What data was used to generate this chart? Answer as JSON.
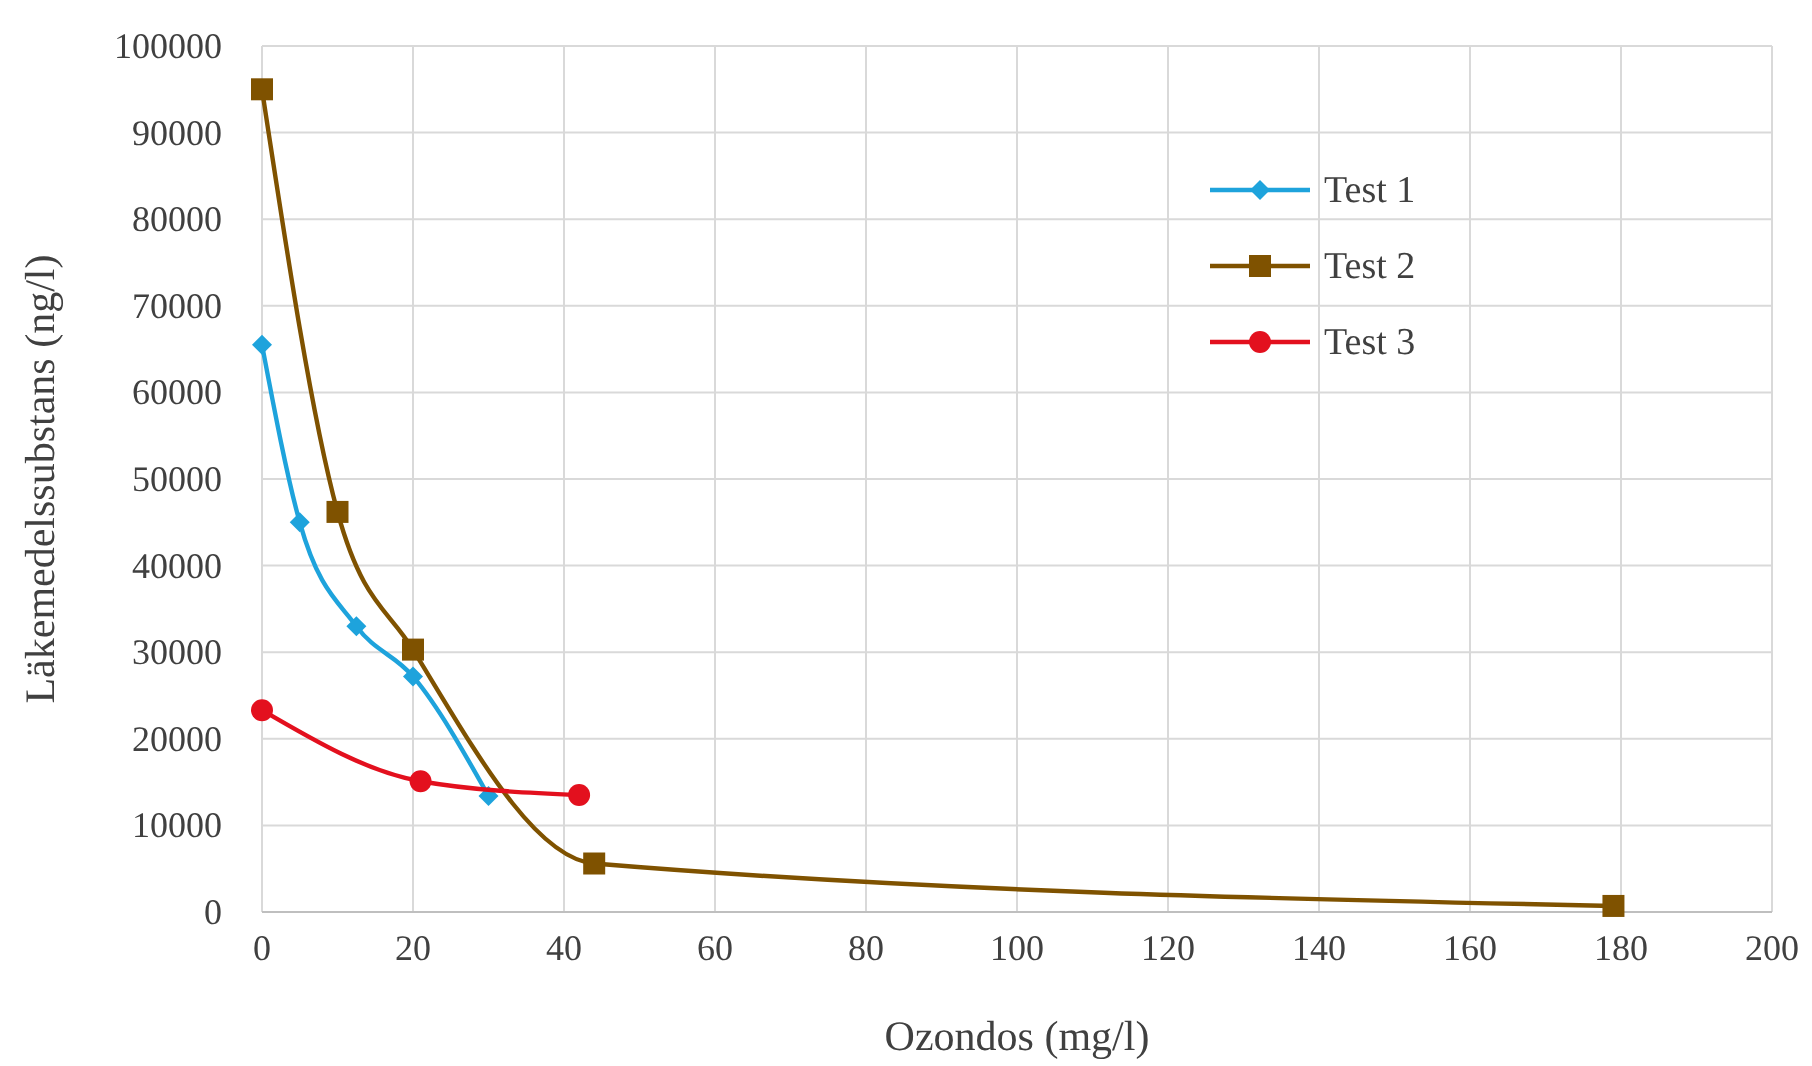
{
  "chart_data": {
    "type": "line",
    "xlabel": "Ozondos (mg/l)",
    "ylabel": "Läkemedelssubstans (ng/l)",
    "xlim": [
      0,
      200
    ],
    "xticks": [
      0,
      20,
      40,
      60,
      80,
      100,
      120,
      140,
      160,
      180,
      200
    ],
    "ylim": [
      0,
      100000
    ],
    "yticks": [
      0,
      10000,
      20000,
      30000,
      40000,
      50000,
      60000,
      70000,
      80000,
      90000,
      100000
    ],
    "grid": true,
    "legend": "top right",
    "series": [
      {
        "name": "Test 1",
        "color": "#1ea3dc",
        "marker": "diamond",
        "x": [
          0,
          5,
          12.5,
          20,
          30
        ],
        "values": [
          65500,
          45000,
          33000,
          27200,
          13400
        ]
      },
      {
        "name": "Test 2",
        "color": "#7f5200",
        "marker": "square",
        "x": [
          0,
          10,
          20,
          44,
          179
        ],
        "values": [
          95000,
          46200,
          30300,
          5600,
          700
        ]
      },
      {
        "name": "Test 3",
        "color": "#e3101e",
        "marker": "circle",
        "x": [
          0,
          21,
          42
        ],
        "values": [
          23300,
          15100,
          13500
        ]
      }
    ]
  }
}
